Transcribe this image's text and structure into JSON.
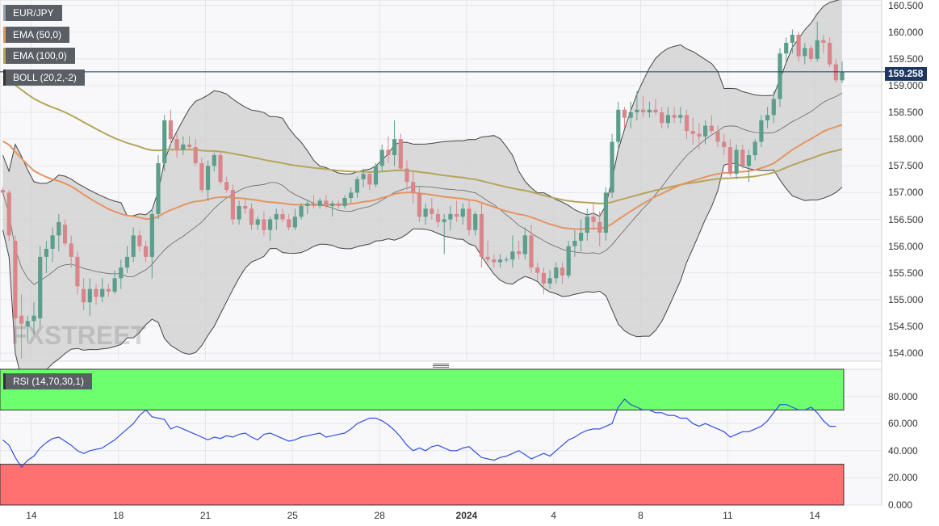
{
  "legend": {
    "pair": "EUR/JPY",
    "ema50": "EMA (50,0)",
    "ema100": "EMA (100,0)",
    "boll": "BOLL (20,2,-2)",
    "rsi": "RSI (14,70,30,1)"
  },
  "watermark": "FXSTREET",
  "colors": {
    "up": "#5b9e8c",
    "down": "#d9868a",
    "ema50": "#e59460",
    "ema100": "#b5a55a",
    "boll_fill": "#cfcfcf",
    "boll_line": "#444444",
    "price_line": "#1e3760",
    "rsi_line": "#2f4fe0",
    "rsi_overbought": "#6dff6d",
    "rsi_oversold": "#ff7070"
  },
  "chart_data": [
    {
      "type": "candlestick",
      "title": "EUR/JPY",
      "last_price": "159.258",
      "ylim": [
        153.85,
        160.6
      ],
      "y_ticks": [
        "160.500",
        "160.000",
        "159.500",
        "159.000",
        "158.500",
        "158.000",
        "157.500",
        "157.000",
        "156.500",
        "156.000",
        "155.500",
        "155.000",
        "154.500",
        "154.000"
      ],
      "x_ticks": [
        {
          "label": "14",
          "i": 2
        },
        {
          "label": "18",
          "i": 16
        },
        {
          "label": "21",
          "i": 30
        },
        {
          "label": "25",
          "i": 44
        },
        {
          "label": "28",
          "i": 58
        },
        {
          "label": "2024",
          "i": 72,
          "bold": true
        },
        {
          "label": "4",
          "i": 86
        },
        {
          "label": "8",
          "i": 100
        },
        {
          "label": "11",
          "i": 114
        },
        {
          "label": "14",
          "i": 128
        }
      ],
      "ohlc": [
        [
          157.05,
          157.1,
          156.95,
          157.0
        ],
        [
          157.0,
          157.05,
          156.1,
          156.2
        ],
        [
          156.1,
          156.2,
          154.2,
          154.65
        ],
        [
          154.7,
          155.1,
          153.9,
          154.55
        ],
        [
          154.5,
          154.7,
          154.2,
          154.6
        ],
        [
          154.6,
          154.95,
          154.35,
          154.7
        ],
        [
          154.65,
          156.0,
          154.5,
          155.8
        ],
        [
          155.8,
          156.1,
          155.5,
          155.95
        ],
        [
          155.95,
          156.35,
          155.7,
          156.2
        ],
        [
          156.2,
          156.6,
          155.9,
          156.45
        ],
        [
          156.4,
          156.5,
          156.0,
          156.05
        ],
        [
          156.05,
          156.2,
          155.6,
          155.8
        ],
        [
          155.8,
          155.9,
          155.1,
          155.25
        ],
        [
          155.2,
          155.4,
          154.8,
          154.95
        ],
        [
          154.95,
          155.4,
          154.7,
          155.2
        ],
        [
          155.2,
          155.3,
          154.9,
          155.05
        ],
        [
          155.05,
          155.4,
          154.95,
          155.2
        ],
        [
          155.2,
          155.3,
          155.05,
          155.15
        ],
        [
          155.15,
          155.55,
          155.1,
          155.4
        ],
        [
          155.4,
          155.75,
          155.2,
          155.6
        ],
        [
          155.6,
          156.0,
          155.5,
          155.8
        ],
        [
          155.8,
          156.35,
          155.7,
          156.2
        ],
        [
          156.2,
          156.3,
          155.9,
          156.0
        ],
        [
          156.0,
          156.1,
          155.7,
          155.8
        ],
        [
          155.8,
          156.7,
          155.4,
          156.6
        ],
        [
          156.6,
          157.7,
          156.5,
          157.55
        ],
        [
          157.55,
          158.45,
          157.4,
          158.35
        ],
        [
          158.35,
          158.55,
          157.9,
          158.0
        ],
        [
          158.0,
          158.1,
          157.65,
          157.8
        ],
        [
          157.8,
          158.05,
          157.7,
          157.9
        ],
        [
          157.9,
          158.05,
          157.8,
          157.85
        ],
        [
          157.85,
          158.0,
          157.5,
          157.55
        ],
        [
          157.55,
          157.65,
          157.0,
          157.05
        ],
        [
          157.05,
          157.6,
          156.85,
          157.5
        ],
        [
          157.5,
          157.75,
          157.4,
          157.7
        ],
        [
          157.7,
          157.75,
          157.15,
          157.2
        ],
        [
          157.2,
          157.3,
          157.0,
          157.05
        ],
        [
          157.05,
          157.15,
          156.4,
          156.5
        ],
        [
          156.5,
          156.85,
          156.4,
          156.75
        ],
        [
          156.75,
          156.9,
          156.6,
          156.7
        ],
        [
          156.7,
          156.8,
          156.3,
          156.4
        ],
        [
          156.4,
          156.55,
          156.3,
          156.5
        ],
        [
          156.5,
          156.65,
          156.2,
          156.3
        ],
        [
          156.3,
          156.55,
          156.1,
          156.5
        ],
        [
          156.5,
          156.7,
          156.3,
          156.6
        ],
        [
          156.6,
          156.7,
          156.45,
          156.5
        ],
        [
          156.5,
          156.6,
          156.3,
          156.35
        ],
        [
          156.35,
          156.7,
          156.3,
          156.55
        ],
        [
          156.55,
          156.8,
          156.5,
          156.75
        ],
        [
          156.75,
          156.85,
          156.6,
          156.8
        ],
        [
          156.8,
          156.95,
          156.7,
          156.75
        ],
        [
          156.75,
          156.9,
          156.7,
          156.85
        ],
        [
          156.85,
          156.95,
          156.7,
          156.75
        ],
        [
          156.75,
          156.85,
          156.55,
          156.8
        ],
        [
          156.8,
          156.85,
          156.7,
          156.75
        ],
        [
          156.75,
          156.95,
          156.7,
          156.9
        ],
        [
          156.9,
          157.1,
          156.8,
          157.0
        ],
        [
          157.0,
          157.3,
          156.9,
          157.25
        ],
        [
          157.25,
          157.45,
          157.1,
          157.35
        ],
        [
          157.35,
          157.4,
          157.05,
          157.15
        ],
        [
          157.15,
          157.55,
          157.1,
          157.5
        ],
        [
          157.5,
          157.9,
          157.4,
          157.8
        ],
        [
          157.8,
          158.05,
          157.55,
          157.7
        ],
        [
          157.7,
          158.35,
          157.5,
          158.0
        ],
        [
          158.0,
          158.1,
          157.4,
          157.45
        ],
        [
          157.45,
          157.6,
          157.05,
          157.2
        ],
        [
          157.2,
          157.4,
          156.8,
          157.0
        ],
        [
          157.0,
          157.1,
          156.45,
          156.55
        ],
        [
          156.55,
          156.8,
          156.4,
          156.7
        ],
        [
          156.7,
          156.9,
          156.5,
          156.6
        ],
        [
          156.6,
          156.7,
          156.35,
          156.45
        ],
        [
          156.45,
          156.6,
          155.85,
          156.5
        ],
        [
          156.5,
          156.75,
          156.3,
          156.6
        ],
        [
          156.6,
          156.85,
          156.45,
          156.55
        ],
        [
          156.55,
          156.8,
          156.4,
          156.7
        ],
        [
          156.7,
          156.85,
          156.2,
          156.3
        ],
        [
          156.3,
          156.65,
          156.2,
          156.6
        ],
        [
          156.6,
          156.8,
          155.6,
          155.8
        ],
        [
          155.8,
          156.1,
          155.7,
          155.75
        ],
        [
          155.75,
          155.85,
          155.6,
          155.7
        ],
        [
          155.7,
          155.85,
          155.6,
          155.75
        ],
        [
          155.75,
          155.8,
          155.7,
          155.75
        ],
        [
          155.75,
          156.2,
          155.6,
          155.9
        ],
        [
          155.9,
          156.1,
          155.75,
          155.85
        ],
        [
          155.85,
          156.35,
          155.75,
          156.2
        ],
        [
          156.2,
          156.4,
          155.5,
          155.6
        ],
        [
          155.6,
          155.7,
          155.35,
          155.5
        ],
        [
          155.5,
          155.6,
          155.1,
          155.3
        ],
        [
          155.3,
          155.55,
          155.2,
          155.4
        ],
        [
          155.4,
          155.7,
          155.3,
          155.6
        ],
        [
          155.6,
          155.7,
          155.3,
          155.45
        ],
        [
          155.45,
          156.1,
          155.4,
          156.0
        ],
        [
          156.0,
          156.3,
          155.8,
          156.1
        ],
        [
          156.1,
          156.5,
          155.9,
          156.25
        ],
        [
          156.25,
          156.7,
          156.1,
          156.55
        ],
        [
          156.55,
          156.8,
          156.3,
          156.45
        ],
        [
          156.45,
          156.65,
          156.0,
          156.25
        ],
        [
          156.25,
          157.1,
          156.1,
          157.0
        ],
        [
          157.0,
          158.1,
          156.9,
          157.95
        ],
        [
          157.95,
          158.7,
          157.8,
          158.55
        ],
        [
          158.55,
          158.6,
          158.2,
          158.4
        ],
        [
          158.4,
          158.7,
          158.2,
          158.5
        ],
        [
          158.5,
          158.9,
          158.35,
          158.55
        ],
        [
          158.55,
          158.8,
          158.4,
          158.5
        ],
        [
          158.5,
          158.7,
          158.4,
          158.55
        ],
        [
          158.55,
          158.75,
          158.45,
          158.5
        ],
        [
          158.5,
          158.6,
          158.2,
          158.3
        ],
        [
          158.3,
          158.6,
          158.2,
          158.45
        ],
        [
          158.45,
          158.6,
          158.3,
          158.4
        ],
        [
          158.4,
          158.6,
          158.3,
          158.45
        ],
        [
          158.45,
          158.55,
          158.0,
          158.15
        ],
        [
          158.15,
          158.4,
          157.9,
          158.1
        ],
        [
          158.1,
          158.3,
          157.8,
          158.05
        ],
        [
          158.05,
          158.35,
          157.9,
          158.25
        ],
        [
          158.25,
          158.45,
          158.1,
          158.15
        ],
        [
          158.15,
          158.25,
          157.85,
          157.95
        ],
        [
          157.95,
          158.1,
          157.7,
          157.85
        ],
        [
          157.85,
          158.0,
          157.3,
          157.35
        ],
        [
          157.35,
          157.9,
          157.25,
          157.8
        ],
        [
          157.8,
          157.9,
          157.45,
          157.5
        ],
        [
          157.5,
          157.8,
          157.2,
          157.7
        ],
        [
          157.7,
          158.0,
          157.6,
          157.95
        ],
        [
          157.95,
          158.45,
          157.85,
          158.35
        ],
        [
          158.35,
          158.6,
          158.2,
          158.45
        ],
        [
          158.45,
          158.9,
          158.3,
          158.75
        ],
        [
          158.75,
          159.7,
          158.6,
          159.6
        ],
        [
          159.6,
          159.9,
          159.45,
          159.8
        ],
        [
          159.8,
          160.05,
          159.6,
          159.95
        ],
        [
          159.95,
          160.0,
          159.45,
          159.55
        ],
        [
          159.55,
          159.8,
          159.4,
          159.7
        ],
        [
          159.7,
          159.75,
          159.45,
          159.5
        ],
        [
          159.5,
          160.2,
          159.45,
          159.85
        ],
        [
          159.85,
          159.95,
          159.6,
          159.8
        ],
        [
          159.8,
          159.9,
          159.35,
          159.4
        ],
        [
          159.4,
          159.5,
          159.05,
          159.1
        ],
        [
          159.1,
          159.45,
          159.05,
          159.26
        ]
      ]
    },
    {
      "type": "line",
      "title": "RSI (14,70,30,1)",
      "ylim": [
        0,
        100
      ],
      "y_ticks": [
        "80.000",
        "60.000",
        "40.000",
        "20.000",
        "0.000"
      ],
      "overbought": 70,
      "oversold": 30,
      "values": [
        48,
        44,
        35,
        28,
        33,
        36,
        42,
        46,
        49,
        50,
        47,
        44,
        40,
        38,
        40,
        41,
        42,
        45,
        48,
        52,
        56,
        60,
        66,
        70,
        65,
        64,
        63,
        56,
        58,
        56,
        54,
        52,
        50,
        48,
        50,
        49,
        51,
        50,
        52,
        53,
        50,
        48,
        52,
        53,
        51,
        49,
        47,
        48,
        50,
        51,
        52,
        53,
        50,
        51,
        52,
        53,
        56,
        60,
        62,
        64,
        64,
        62,
        59,
        55,
        50,
        44,
        40,
        42,
        40,
        43,
        44,
        42,
        40,
        40,
        42,
        43,
        39,
        35,
        34,
        33,
        35,
        36,
        38,
        40,
        37,
        34,
        36,
        38,
        36,
        40,
        44,
        48,
        50,
        53,
        55,
        56,
        56,
        58,
        60,
        72,
        78,
        74,
        72,
        70,
        70,
        68,
        68,
        66,
        66,
        64,
        64,
        60,
        58,
        60,
        58,
        56,
        54,
        50,
        52,
        54,
        54,
        56,
        58,
        62,
        68,
        74,
        74,
        72,
        70,
        70,
        72,
        68,
        62,
        58,
        58
      ]
    }
  ]
}
